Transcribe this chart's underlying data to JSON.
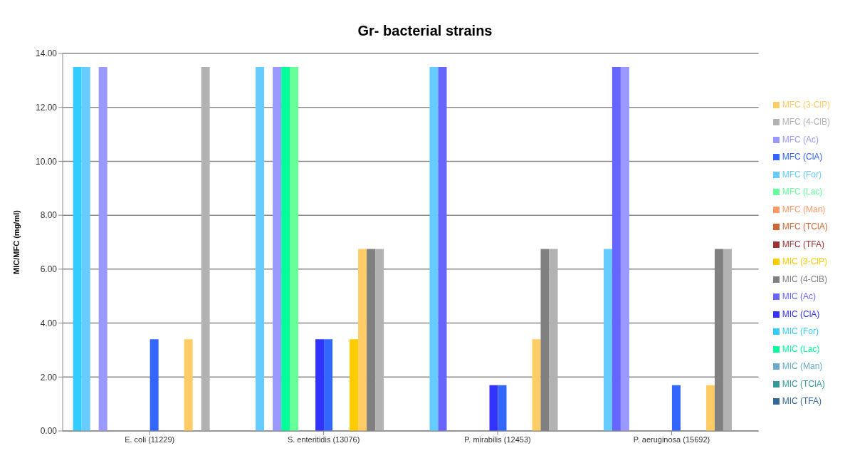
{
  "chart_data": {
    "type": "bar",
    "title": "Gr- bacterial strains",
    "ylabel": "MIC/MFC (mg/ml)",
    "categories": [
      "E. coli (11229)",
      "S. enteritidis (13076)",
      "P. mirabilis (12453)",
      "P. aeruginosa (15692)"
    ],
    "series": [
      {
        "name": "MIC (For)",
        "color": "#33ccff",
        "values": [
          13.5,
          0,
          0,
          0
        ]
      },
      {
        "name": "MFC (For)",
        "color": "#66ccff",
        "values": [
          13.5,
          13.5,
          13.5,
          6.75
        ]
      },
      {
        "name": "MIC (Ac)",
        "color": "#6666ff",
        "values": [
          0,
          0,
          13.5,
          13.5
        ]
      },
      {
        "name": "MFC (Ac)",
        "color": "#9999ff",
        "values": [
          13.5,
          13.5,
          0,
          13.5
        ]
      },
      {
        "name": "MIC (Lac)",
        "color": "#00ff99",
        "values": [
          0,
          13.5,
          0,
          0
        ]
      },
      {
        "name": "MFC (Lac)",
        "color": "#66ff99",
        "values": [
          0,
          13.5,
          0,
          0
        ]
      },
      {
        "name": "MIC (TFA)",
        "color": "#336699",
        "values": [
          0,
          0,
          0,
          0
        ]
      },
      {
        "name": "MFC (TFA)",
        "color": "#993333",
        "values": [
          0,
          0,
          0,
          0
        ]
      },
      {
        "name": "MIC (ClA)",
        "color": "#3333ff",
        "values": [
          0,
          3.4,
          1.7,
          0
        ]
      },
      {
        "name": "MFC (ClA)",
        "color": "#3366ff",
        "values": [
          3.4,
          3.4,
          1.7,
          1.7
        ]
      },
      {
        "name": "MIC (TClA)",
        "color": "#339999",
        "values": [
          0,
          0,
          0,
          0
        ]
      },
      {
        "name": "MFC (TClA)",
        "color": "#cc6633",
        "values": [
          0,
          0,
          0,
          0
        ]
      },
      {
        "name": "MIC (3-ClP)",
        "color": "#ffcc00",
        "values": [
          0,
          3.4,
          0,
          0
        ]
      },
      {
        "name": "MFC (3-ClP)",
        "color": "#ffcc66",
        "values": [
          3.4,
          6.75,
          3.4,
          1.7
        ]
      },
      {
        "name": "MIC (4-ClB)",
        "color": "#808080",
        "values": [
          0,
          6.75,
          6.75,
          6.75
        ]
      },
      {
        "name": "MFC (4-ClB)",
        "color": "#b2b2b2",
        "values": [
          13.5,
          6.75,
          6.75,
          6.75
        ]
      },
      {
        "name": "MIC (Man)",
        "color": "#66aacc",
        "values": [
          0,
          0,
          0,
          0
        ]
      },
      {
        "name": "MFC (Man)",
        "color": "#ff9966",
        "values": [
          0,
          0,
          0,
          0
        ]
      }
    ],
    "ylim": [
      0,
      14
    ],
    "yticks": [
      {
        "value": 0,
        "label": "0.00"
      },
      {
        "value": 2,
        "label": "2.00"
      },
      {
        "value": 4,
        "label": "4.00"
      },
      {
        "value": 6,
        "label": "6.00"
      },
      {
        "value": 8,
        "label": "8.00"
      },
      {
        "value": 10,
        "label": "10.00"
      },
      {
        "value": 12,
        "label": "12.00"
      },
      {
        "value": 14,
        "label": "14.00"
      }
    ],
    "grid": "y",
    "legend": "right"
  }
}
